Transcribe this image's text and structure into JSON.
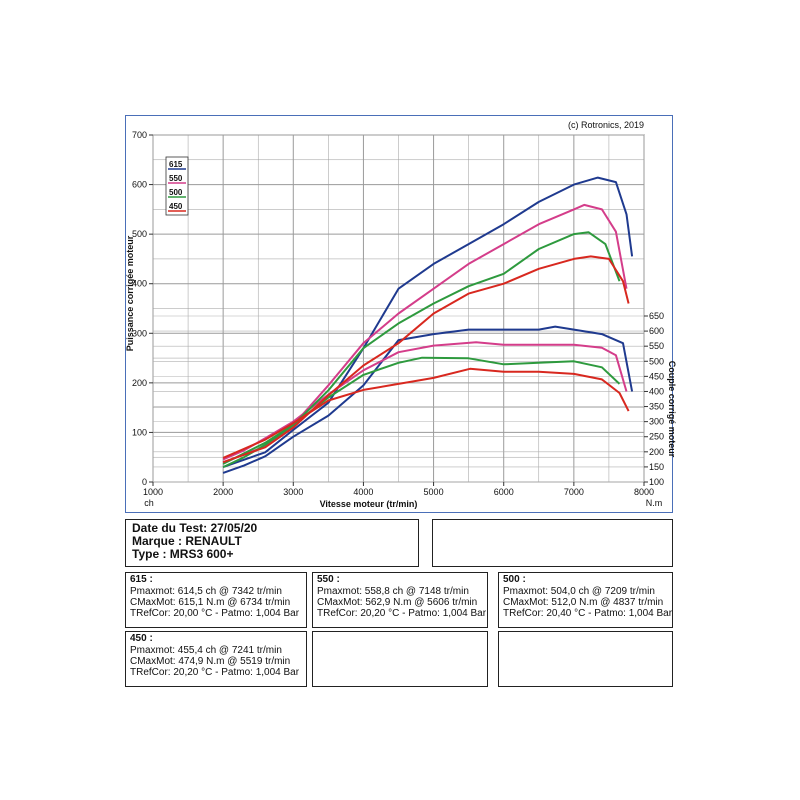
{
  "chart_data": {
    "type": "line",
    "copyright": "(c) Rotronics, 2019",
    "xlabel": "Vitesse moteur (tr/min)",
    "ylabel_left": "Puissance corrigée moteur",
    "ylabel_right": "Couple corrigé moteur",
    "unit_left": "ch",
    "unit_right": "N.m",
    "xlim": [
      1000,
      8000
    ],
    "ylim_left": [
      0,
      700
    ],
    "ylim_right": [
      100,
      650
    ],
    "x_ticks": [
      "1000",
      "2000",
      "3000",
      "4000",
      "5000",
      "6000",
      "7000",
      "8000"
    ],
    "y_ticks_left": [
      "0",
      "100",
      "200",
      "300",
      "400",
      "500",
      "600",
      "700"
    ],
    "y_ticks_right": [
      "100",
      "150",
      "200",
      "250",
      "300",
      "350",
      "400",
      "450",
      "500",
      "550",
      "600",
      "650"
    ],
    "grid": true,
    "legend_position": "top-left",
    "series": [
      {
        "name": "615",
        "color": "#1f3a8f",
        "power": [
          [
            2000,
            30
          ],
          [
            2300,
            45
          ],
          [
            2600,
            60
          ],
          [
            3000,
            105
          ],
          [
            3500,
            160
          ],
          [
            4000,
            270
          ],
          [
            4500,
            390
          ],
          [
            5000,
            440
          ],
          [
            5500,
            480
          ],
          [
            6000,
            520
          ],
          [
            6500,
            565
          ],
          [
            7000,
            600
          ],
          [
            7342,
            614
          ],
          [
            7600,
            605
          ],
          [
            7750,
            540
          ],
          [
            7830,
            455
          ]
        ],
        "torque": [
          [
            2000,
            130
          ],
          [
            2300,
            155
          ],
          [
            2600,
            185
          ],
          [
            3000,
            250
          ],
          [
            3500,
            320
          ],
          [
            4000,
            420
          ],
          [
            4500,
            570
          ],
          [
            5000,
            590
          ],
          [
            5500,
            605
          ],
          [
            6000,
            605
          ],
          [
            6500,
            605
          ],
          [
            6734,
            615
          ],
          [
            7000,
            605
          ],
          [
            7400,
            590
          ],
          [
            7700,
            560
          ],
          [
            7830,
            400
          ]
        ]
      },
      {
        "name": "550",
        "color": "#d43d8a",
        "power": [
          [
            2000,
            40
          ],
          [
            2300,
            55
          ],
          [
            2600,
            72
          ],
          [
            3000,
            115
          ],
          [
            3500,
            195
          ],
          [
            4000,
            280
          ],
          [
            4500,
            340
          ],
          [
            5000,
            390
          ],
          [
            5500,
            440
          ],
          [
            6000,
            480
          ],
          [
            6500,
            520
          ],
          [
            7000,
            550
          ],
          [
            7148,
            559
          ],
          [
            7400,
            550
          ],
          [
            7600,
            505
          ],
          [
            7750,
            390
          ]
        ],
        "torque": [
          [
            2000,
            175
          ],
          [
            2300,
            205
          ],
          [
            2600,
            245
          ],
          [
            3000,
            300
          ],
          [
            3500,
            390
          ],
          [
            4000,
            470
          ],
          [
            4500,
            530
          ],
          [
            5000,
            552
          ],
          [
            5606,
            563
          ],
          [
            6000,
            555
          ],
          [
            6500,
            555
          ],
          [
            7000,
            555
          ],
          [
            7400,
            545
          ],
          [
            7600,
            520
          ],
          [
            7750,
            400
          ]
        ]
      },
      {
        "name": "500",
        "color": "#2e9a3e",
        "power": [
          [
            2000,
            30
          ],
          [
            2300,
            50
          ],
          [
            2600,
            75
          ],
          [
            3000,
            115
          ],
          [
            3500,
            185
          ],
          [
            4000,
            270
          ],
          [
            4500,
            320
          ],
          [
            5000,
            360
          ],
          [
            5500,
            395
          ],
          [
            6000,
            420
          ],
          [
            6500,
            470
          ],
          [
            7000,
            500
          ],
          [
            7209,
            504
          ],
          [
            7450,
            480
          ],
          [
            7650,
            405
          ]
        ],
        "torque": [
          [
            2000,
            160
          ],
          [
            2300,
            195
          ],
          [
            2600,
            230
          ],
          [
            3000,
            290
          ],
          [
            3500,
            380
          ],
          [
            4000,
            455
          ],
          [
            4500,
            495
          ],
          [
            4837,
            512
          ],
          [
            5500,
            510
          ],
          [
            6000,
            490
          ],
          [
            6500,
            495
          ],
          [
            7000,
            500
          ],
          [
            7400,
            480
          ],
          [
            7650,
            425
          ]
        ]
      },
      {
        "name": "450",
        "color": "#d8281f",
        "power": [
          [
            2000,
            40
          ],
          [
            2300,
            55
          ],
          [
            2600,
            70
          ],
          [
            3000,
            110
          ],
          [
            3500,
            175
          ],
          [
            4000,
            235
          ],
          [
            4500,
            280
          ],
          [
            5000,
            340
          ],
          [
            5500,
            380
          ],
          [
            6000,
            400
          ],
          [
            6500,
            430
          ],
          [
            7000,
            450
          ],
          [
            7241,
            455
          ],
          [
            7500,
            450
          ],
          [
            7700,
            405
          ],
          [
            7780,
            360
          ]
        ],
        "torque": [
          [
            2000,
            180
          ],
          [
            2300,
            210
          ],
          [
            2600,
            240
          ],
          [
            3000,
            295
          ],
          [
            3500,
            370
          ],
          [
            4000,
            405
          ],
          [
            4500,
            425
          ],
          [
            5000,
            445
          ],
          [
            5519,
            475
          ],
          [
            6000,
            465
          ],
          [
            6500,
            465
          ],
          [
            7000,
            458
          ],
          [
            7400,
            440
          ],
          [
            7650,
            395
          ],
          [
            7780,
            335
          ]
        ]
      }
    ]
  },
  "header": {
    "date": "Date du Test: 27/05/20",
    "marque": "Marque  : RENAULT",
    "type": "Type  : MRS3 600+"
  },
  "results": [
    {
      "title": "615 :",
      "pmax": "Pmaxmot: 614,5 ch @ 7342 tr/min",
      "cmax": "CMaxMot: 615,1 N.m @ 6734 tr/min",
      "tref": "TRefCor: 20,00 °C - Patmo: 1,004 Bar"
    },
    {
      "title": "550 :",
      "pmax": "Pmaxmot: 558,8 ch @ 7148 tr/min",
      "cmax": "CMaxMot: 562,9 N.m @ 5606 tr/min",
      "tref": "TRefCor: 20,20 °C - Patmo: 1,004 Bar"
    },
    {
      "title": "500 :",
      "pmax": "Pmaxmot: 504,0 ch @ 7209 tr/min",
      "cmax": "CMaxMot: 512,0 N.m @ 4837 tr/min",
      "tref": "TRefCor: 20,40 °C - Patmo: 1,004 Bar"
    },
    {
      "title": "450 :",
      "pmax": "Pmaxmot: 455,4 ch @ 7241 tr/min",
      "cmax": "CMaxMot: 474,9 N.m @ 5519 tr/min",
      "tref": "TRefCor: 20,20 °C - Patmo: 1,004 Bar"
    }
  ]
}
